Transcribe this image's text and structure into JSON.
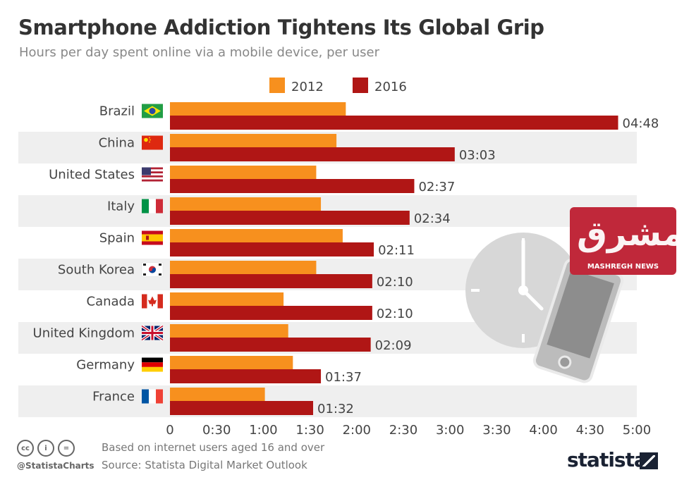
{
  "title": "Smartphone Addiction Tightens Its Global Grip",
  "subtitle": "Hours per day spent online via a mobile device, per user",
  "chart_data": {
    "type": "bar",
    "orientation": "horizontal",
    "categories": [
      "Brazil",
      "China",
      "United States",
      "Italy",
      "Spain",
      "South Korea",
      "Canada",
      "United Kingdom",
      "Germany",
      "France"
    ],
    "series": [
      {
        "name": "2012",
        "color": "#f7901e",
        "values": [
          113,
          107,
          94,
          97,
          111,
          94,
          73,
          76,
          79,
          61
        ]
      },
      {
        "name": "2016",
        "color": "#b01615",
        "values": [
          288,
          183,
          157,
          154,
          131,
          130,
          130,
          129,
          97,
          92
        ],
        "labels": [
          "04:48",
          "03:03",
          "02:37",
          "02:34",
          "02:11",
          "02:10",
          "02:10",
          "02:09",
          "01:37",
          "01:32"
        ]
      }
    ],
    "value_unit": "minutes",
    "xlim": [
      0,
      300
    ],
    "x_ticks": [
      0,
      30,
      60,
      90,
      120,
      150,
      180,
      210,
      240,
      270,
      300
    ],
    "x_tick_labels": [
      "0",
      "0:30",
      "1:00",
      "1:30",
      "2:00",
      "2:30",
      "3:00",
      "3:30",
      "4:00",
      "4:30",
      "5:00"
    ],
    "legend_position": "top",
    "row_stripes": true
  },
  "footer": {
    "note": "Based on internet users aged 16 and over",
    "source": "Source: Statista Digital Market Outlook",
    "handle": "@StatistaCharts",
    "brand": "statista",
    "cc_icons": [
      "cc",
      "i",
      "="
    ]
  },
  "watermark": {
    "text": "MASHREGH NEWS",
    "script": "مشرق"
  }
}
